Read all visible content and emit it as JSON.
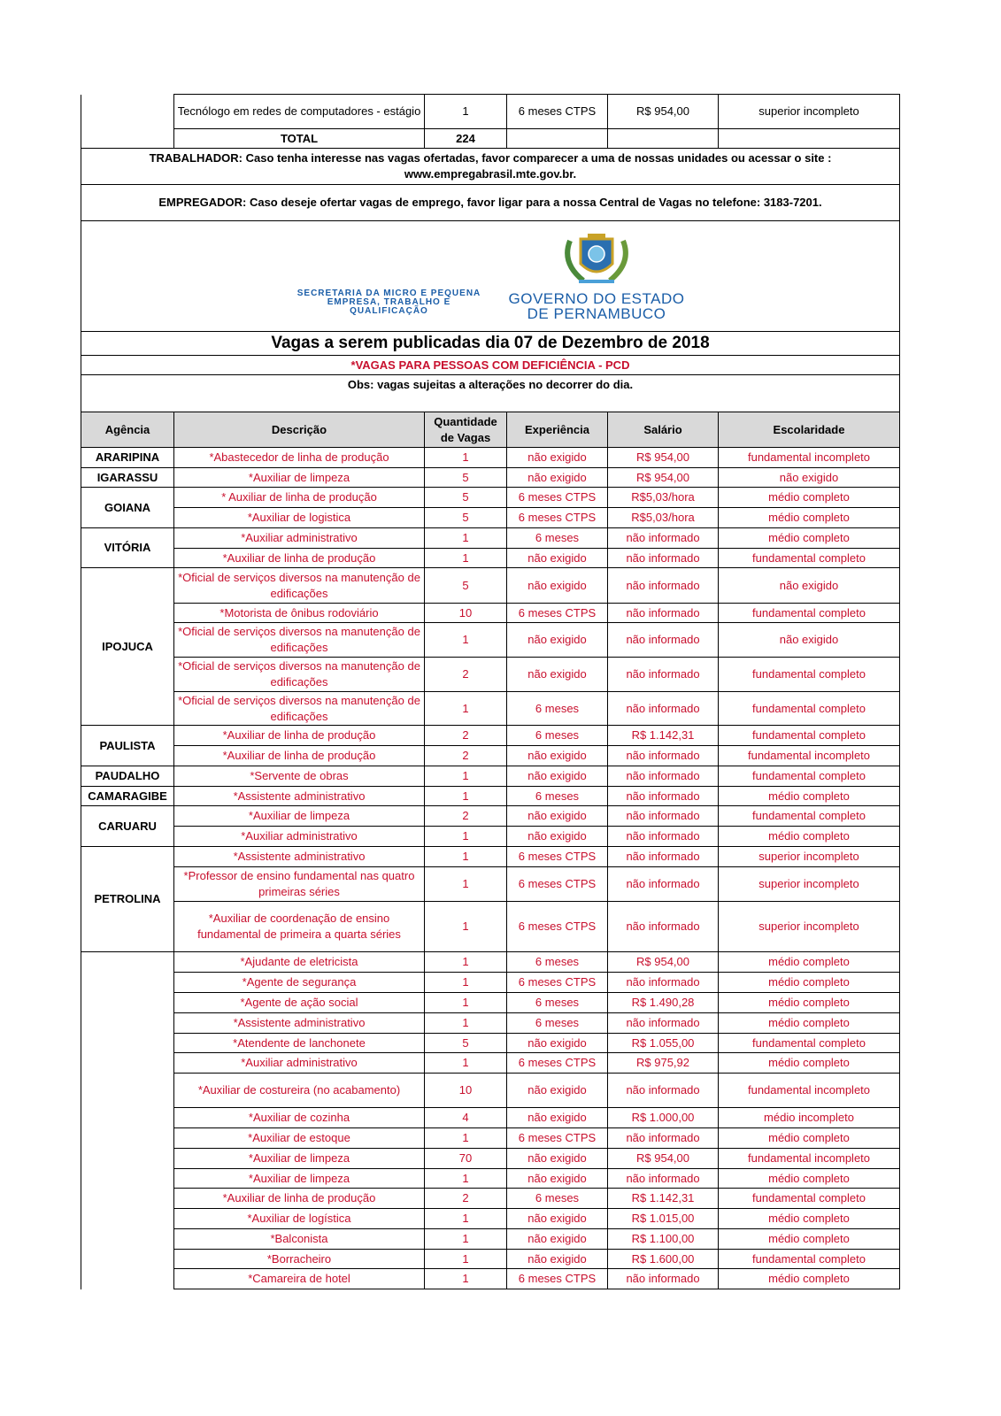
{
  "top_rows": [
    {
      "descricao": "Tecnólogo em redes de computadores - estágio",
      "quantidade": "1",
      "experiencia": "6 meses CTPS",
      "salario": "R$ 954,00",
      "escolaridade": "superior incompleto"
    }
  ],
  "total": {
    "label": "TOTAL",
    "value": "224"
  },
  "notices": {
    "trabalhador": "TRABALHADOR: Caso tenha interesse nas vagas ofertadas, favor comparecer a uma de nossas unidades ou acessar o site : www.empregabrasil.mte.gov.br.",
    "empregador": "EMPREGADOR: Caso deseje ofertar vagas de emprego, favor ligar para a nossa Central de Vagas no telefone: 3183-7201."
  },
  "logo": {
    "secretaria": "SECRETARIA DA MICRO E PEQUENA EMPRESA, TRABALHO E QUALIFICAÇÃO",
    "governo_line1": "GOVERNO DO ESTADO",
    "governo_line2": "DE PERNAMBUCO"
  },
  "title": "Vagas a serem publicadas dia 07 de Dezembro de 2018",
  "pcd_note": "*VAGAS PARA PESSOAS COM DEFICIÊNCIA - PCD",
  "obs": "Obs: vagas sujeitas a alterações no decorrer do dia.",
  "headers": [
    "Agência",
    "Descrição",
    "Quantidade de Vagas",
    "Experiência",
    "Salário",
    "Escolaridade"
  ],
  "colors": {
    "text_red": "#c8102e",
    "header_bg": "#d9d9d9"
  },
  "groups": [
    {
      "agencia": "ARARIPINA",
      "rows": [
        [
          "*Abastecedor de linha de produção",
          "1",
          "não exigido",
          "R$ 954,00",
          "fundamental incompleto"
        ]
      ]
    },
    {
      "agencia": "IGARASSU",
      "rows": [
        [
          "*Auxiliar de limpeza",
          "5",
          "não exigido",
          "R$ 954,00",
          "não exigido"
        ]
      ]
    },
    {
      "agencia": "GOIANA",
      "rows": [
        [
          "* Auxiliar de linha de produção",
          "5",
          "6 meses CTPS",
          "R$5,03/hora",
          "médio completo"
        ],
        [
          "*Auxiliar de logistica",
          "5",
          "6 meses CTPS",
          "R$5,03/hora",
          "médio completo"
        ]
      ]
    },
    {
      "agencia": "VITÓRIA",
      "rows": [
        [
          "*Auxiliar administrativo",
          "1",
          "6 meses",
          "não informado",
          "médio completo"
        ],
        [
          "*Auxiliar de linha de produção",
          "1",
          "não exigido",
          "não informado",
          "fundamental completo"
        ]
      ]
    },
    {
      "agencia": "IPOJUCA",
      "rows": [
        [
          "*Oficial de serviços diversos na manutenção de edificações",
          "5",
          "não exigido",
          "não informado",
          "não exigido"
        ],
        [
          "*Motorista de ônibus rodoviário",
          "10",
          "6 meses CTPS",
          "não informado",
          "fundamental completo"
        ],
        [
          "*Oficial de serviços diversos na manutenção de edificações",
          "1",
          "não exigido",
          "não informado",
          "não exigido"
        ],
        [
          "*Oficial de serviços diversos na manutenção de edificações",
          "2",
          "não exigido",
          "não informado",
          "fundamental completo"
        ],
        [
          "*Oficial de serviços diversos na manutenção de edificações",
          "1",
          "6 meses",
          "não informado",
          "fundamental completo"
        ]
      ]
    },
    {
      "agencia": "PAULISTA",
      "rows": [
        [
          "*Auxiliar de linha de produção",
          "2",
          "6 meses",
          "R$ 1.142,31",
          "fundamental completo"
        ],
        [
          "*Auxiliar de linha de produção",
          "2",
          "não exigido",
          "não informado",
          "fundamental incompleto"
        ]
      ]
    },
    {
      "agencia": "PAUDALHO",
      "rows": [
        [
          "*Servente de obras",
          "1",
          "não exigido",
          "não informado",
          "fundamental completo"
        ]
      ]
    },
    {
      "agencia": "CAMARAGIBE",
      "rows": [
        [
          "*Assistente administrativo",
          "1",
          "6 meses",
          "não informado",
          "médio completo"
        ]
      ]
    },
    {
      "agencia": "CARUARU",
      "rows": [
        [
          "*Auxiliar de limpeza",
          "2",
          "não exigido",
          "não informado",
          "fundamental completo"
        ],
        [
          "*Auxiliar administrativo",
          "1",
          "não exigido",
          "não informado",
          "médio completo"
        ]
      ]
    },
    {
      "agencia": "PETROLINA",
      "rows": [
        [
          "*Assistente administrativo",
          "1",
          "6 meses CTPS",
          "não informado",
          "superior incompleto"
        ],
        [
          "*Professor de ensino fundamental nas quatro primeiras séries",
          "1",
          "6 meses CTPS",
          "não informado",
          "superior incompleto"
        ],
        [
          "*Auxiliar de coordenação de ensino fundamental de primeira a quarta séries",
          "1",
          "6 meses CTPS",
          "não informado",
          "superior incompleto"
        ]
      ]
    },
    {
      "agencia": "",
      "rows": [
        [
          "*Ajudante de eletricista",
          "1",
          "6 meses",
          "R$ 954,00",
          "médio completo"
        ],
        [
          "*Agente de segurança",
          "1",
          "6 meses CTPS",
          "não informado",
          "médio completo"
        ],
        [
          "*Agente de ação social",
          "1",
          "6 meses",
          "R$ 1.490,28",
          "médio completo"
        ],
        [
          "*Assistente administrativo",
          "1",
          "6 meses",
          "não informado",
          "médio completo"
        ],
        [
          "*Atendente de lanchonete",
          "5",
          "não exigido",
          "R$ 1.055,00",
          "fundamental completo"
        ],
        [
          "*Auxiliar administrativo",
          "1",
          "6 meses CTPS",
          "R$ 975,92",
          "médio completo"
        ],
        [
          "*Auxiliar de costureira (no acabamento)",
          "10",
          "não exigido",
          "não informado",
          "fundamental incompleto"
        ],
        [
          "*Auxiliar de cozinha",
          "4",
          "não exigido",
          "R$ 1.000,00",
          "médio incompleto"
        ],
        [
          "*Auxiliar de estoque",
          "1",
          "6 meses CTPS",
          "não informado",
          "médio completo"
        ],
        [
          "*Auxiliar de limpeza",
          "70",
          "não exigido",
          "R$ 954,00",
          "fundamental incompleto"
        ],
        [
          "*Auxiliar de limpeza",
          "1",
          "não exigido",
          "não informado",
          "médio completo"
        ],
        [
          "*Auxiliar de linha de produção",
          "2",
          "6 meses",
          "R$ 1.142,31",
          "fundamental completo"
        ],
        [
          "*Auxiliar de logística",
          "1",
          "não exigido",
          "R$ 1.015,00",
          "médio completo"
        ],
        [
          "*Balconista",
          "1",
          "não exigido",
          "R$ 1.100,00",
          "médio completo"
        ],
        [
          "*Borracheiro",
          "1",
          "não exigido",
          "R$ 1.600,00",
          "fundamental completo"
        ],
        [
          "*Camareira de hotel",
          "1",
          "6 meses CTPS",
          "não informado",
          "médio completo"
        ]
      ]
    }
  ]
}
